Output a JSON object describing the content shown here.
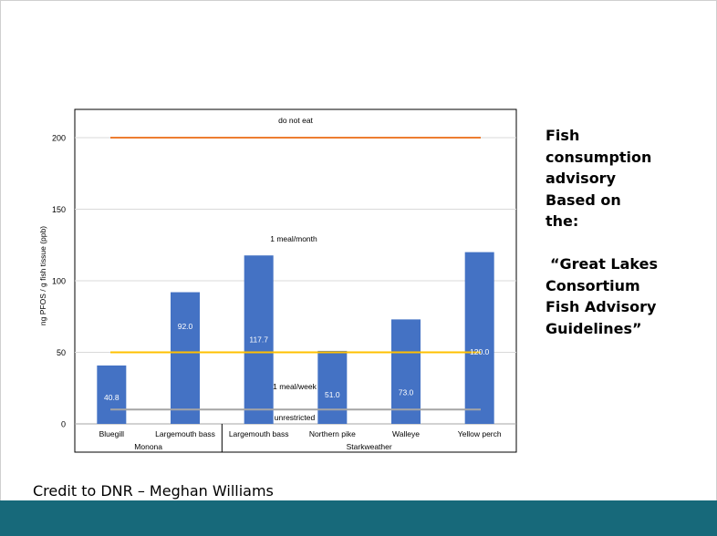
{
  "side_text": {
    "lines": [
      "Fish",
      "consumption",
      "advisory",
      "Based on",
      "the:",
      "",
      "“Great Lakes",
      "Consortium",
      "Fish Advisory",
      "Guidelines”"
    ]
  },
  "credit": "Credit to DNR – Meghan Williams",
  "colors": {
    "bar": "#4472c4",
    "do_not_eat_line": "#ed7d31",
    "meal_month_line": "#ffc000",
    "unrestricted_line": "#a5a5a5",
    "footer": "#17697a"
  },
  "chart_data": {
    "type": "bar",
    "ylabel": "ng PFOS / g fish tissue (ppb)",
    "ylim": [
      0,
      220
    ],
    "yticks": [
      0,
      50,
      100,
      150,
      200
    ],
    "grid": true,
    "categories": [
      "Bluegill",
      "Largemouth bass",
      "Largemouth bass",
      "Northern pike",
      "Walleye",
      "Yellow perch"
    ],
    "groups": [
      {
        "name": "Monona",
        "count": 2
      },
      {
        "name": "Starkweather",
        "count": 4
      }
    ],
    "values": [
      40.8,
      92.0,
      117.7,
      51.0,
      73.0,
      120.0
    ],
    "value_labels": [
      "40.8",
      "92.0",
      "117.7",
      "51.0",
      "73.0",
      "120.0"
    ],
    "thresholds": [
      {
        "label": "do not eat",
        "value": 200,
        "color": "#ed7d31"
      },
      {
        "label": "1 meal/month",
        "value": 50,
        "color": "#ffc000"
      },
      {
        "label": "1 meal/week",
        "value": 10,
        "color": "#a5a5a5"
      },
      {
        "label": "unrestricted",
        "value": 10,
        "color": "#a5a5a5"
      }
    ]
  }
}
